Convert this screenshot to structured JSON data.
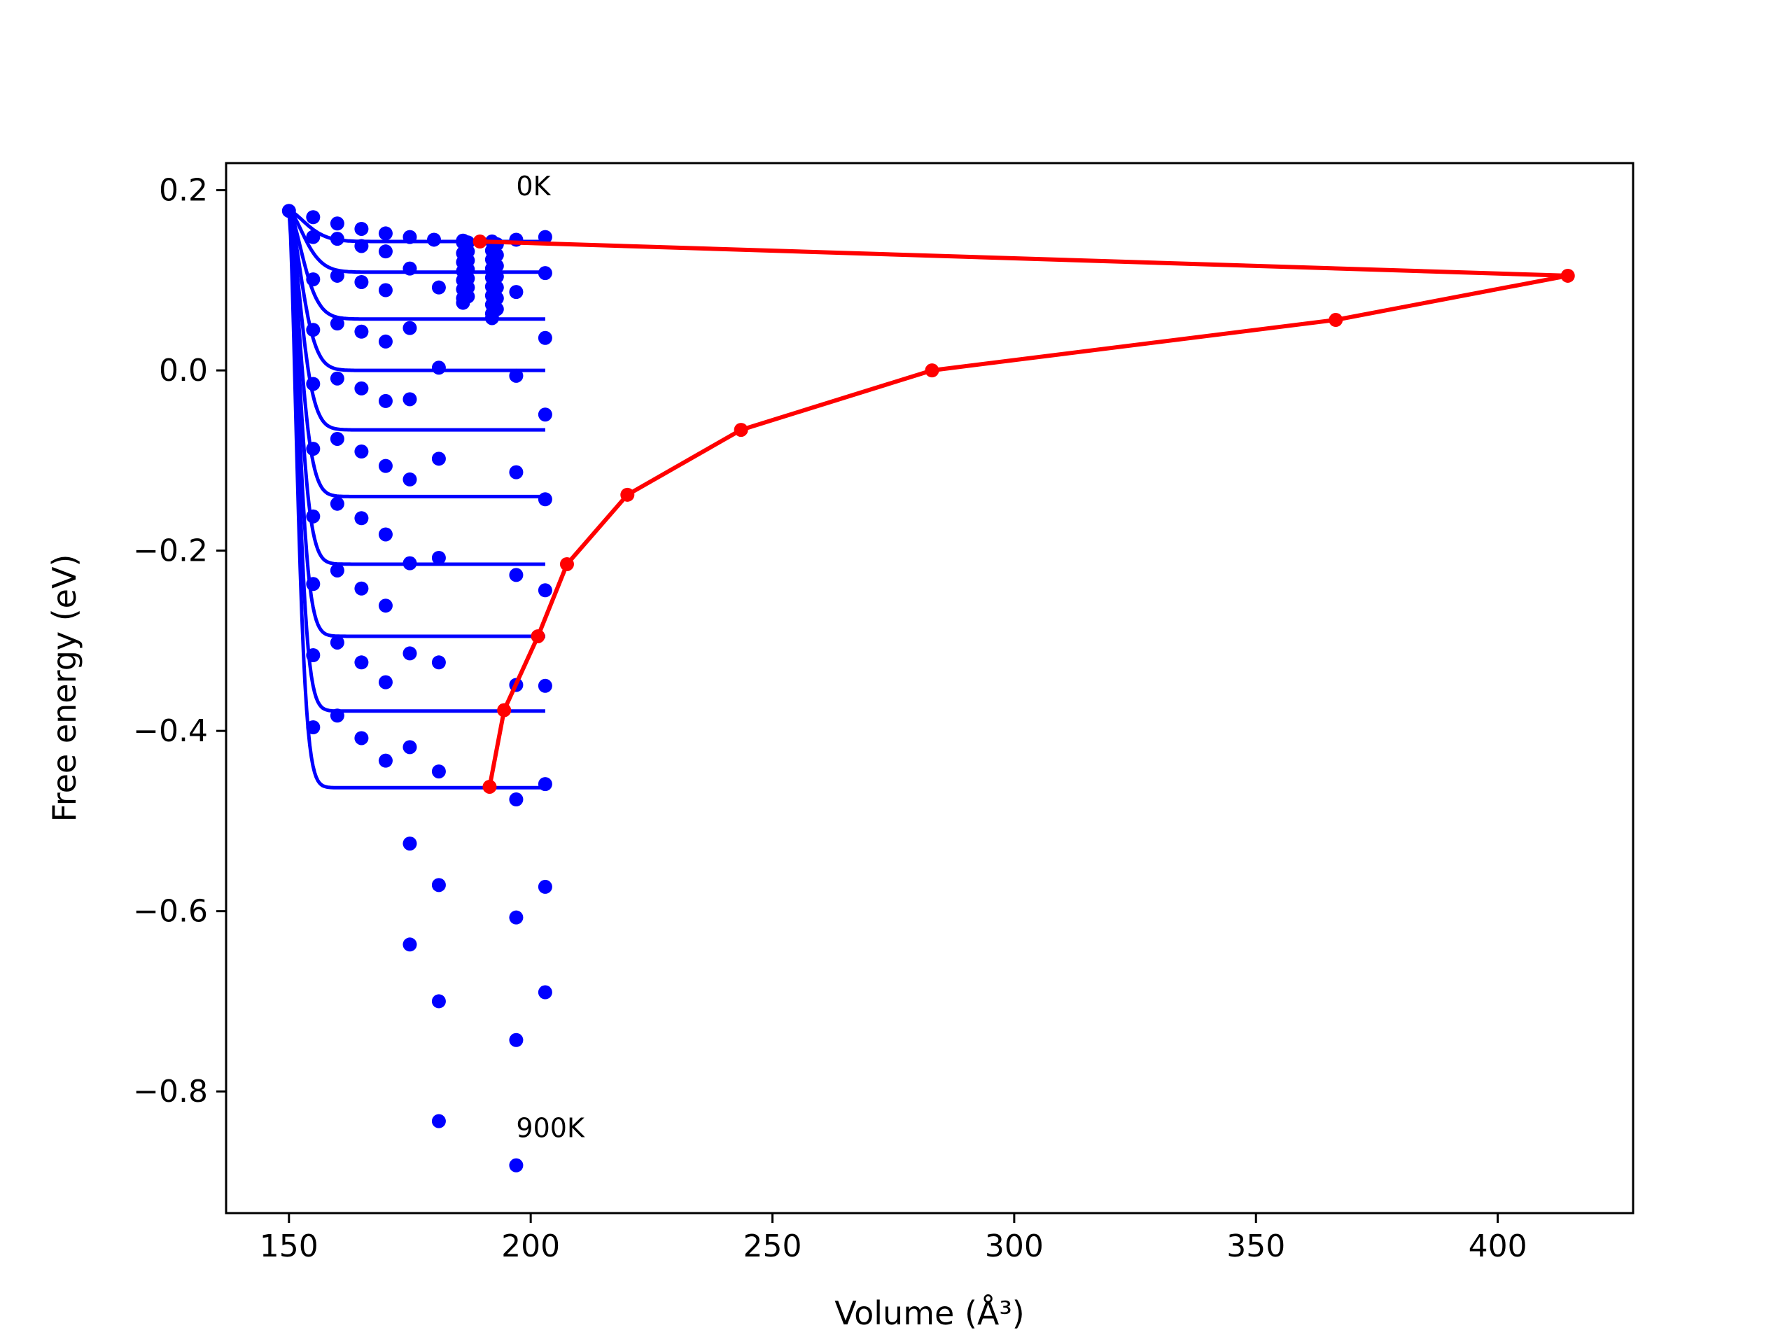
{
  "chart_data": {
    "type": "line",
    "title": "",
    "xlabel": "Volume (Å³)",
    "ylabel": "Free energy (eV)",
    "xlim": [
      137,
      428
    ],
    "ylim": [
      -0.935,
      0.23
    ],
    "xticks": [
      150,
      200,
      250,
      300,
      350,
      400
    ],
    "xtick_labels": [
      "150",
      "200",
      "250",
      "300",
      "350",
      "400"
    ],
    "yticks": [
      0.2,
      0.0,
      -0.2,
      -0.4,
      -0.6,
      -0.8
    ],
    "ytick_labels": [
      "0.2",
      "0.0",
      "−0.2",
      "−0.4",
      "−0.6",
      "−0.8"
    ],
    "grid": false,
    "legend": "none",
    "annotations": [
      {
        "text": "0K",
        "x": 197,
        "y": 0.205
      },
      {
        "text": "900K",
        "x": 197,
        "y": -0.84
      }
    ],
    "colors": {
      "fit": "#0000ff",
      "points": "#0000ff",
      "minima": "#ff0000"
    },
    "fit_curves": {
      "x_start": 150,
      "x_end": 203,
      "y_start": 0.177,
      "minima": [
        0.143,
        0.109,
        0.057,
        0.0,
        -0.066,
        -0.14,
        -0.215,
        -0.295,
        -0.378,
        -0.463
      ]
    },
    "scatter_points": [
      [
        150,
        0.177
      ],
      [
        155,
        0.17
      ],
      [
        160,
        0.163
      ],
      [
        165,
        0.157
      ],
      [
        170,
        0.152
      ],
      [
        175,
        0.148
      ],
      [
        180,
        0.145
      ],
      [
        186,
        0.144
      ],
      [
        197,
        0.145
      ],
      [
        203,
        0.148
      ],
      [
        155,
        0.148
      ],
      [
        160,
        0.146
      ],
      [
        165,
        0.138
      ],
      [
        170,
        0.132
      ],
      [
        175,
        0.113
      ],
      [
        181,
        0.092
      ],
      [
        197,
        0.087
      ],
      [
        203,
        0.108
      ],
      [
        160,
        0.105
      ],
      [
        165,
        0.098
      ],
      [
        170,
        0.089
      ],
      [
        155,
        0.101
      ],
      [
        155,
        0.045
      ],
      [
        160,
        0.052
      ],
      [
        165,
        0.043
      ],
      [
        170,
        0.032
      ],
      [
        175,
        0.047
      ],
      [
        181,
        0.003
      ],
      [
        197,
        -0.006
      ],
      [
        203,
        0.036
      ],
      [
        155,
        -0.015
      ],
      [
        160,
        -0.009
      ],
      [
        165,
        -0.02
      ],
      [
        170,
        -0.034
      ],
      [
        175,
        -0.032
      ],
      [
        203,
        -0.049
      ],
      [
        155,
        -0.087
      ],
      [
        160,
        -0.076
      ],
      [
        165,
        -0.09
      ],
      [
        170,
        -0.106
      ],
      [
        175,
        -0.121
      ],
      [
        181,
        -0.098
      ],
      [
        197,
        -0.113
      ],
      [
        203,
        -0.143
      ],
      [
        155,
        -0.162
      ],
      [
        160,
        -0.148
      ],
      [
        165,
        -0.164
      ],
      [
        170,
        -0.182
      ],
      [
        175,
        -0.214
      ],
      [
        181,
        -0.208
      ],
      [
        197,
        -0.227
      ],
      [
        203,
        -0.244
      ],
      [
        155,
        -0.237
      ],
      [
        160,
        -0.222
      ],
      [
        165,
        -0.242
      ],
      [
        170,
        -0.261
      ],
      [
        155,
        -0.316
      ],
      [
        160,
        -0.302
      ],
      [
        165,
        -0.324
      ],
      [
        170,
        -0.346
      ],
      [
        175,
        -0.314
      ],
      [
        181,
        -0.324
      ],
      [
        197,
        -0.349
      ],
      [
        203,
        -0.35
      ],
      [
        155,
        -0.396
      ],
      [
        160,
        -0.383
      ],
      [
        165,
        -0.408
      ],
      [
        170,
        -0.433
      ],
      [
        175,
        -0.418
      ],
      [
        181,
        -0.445
      ],
      [
        197,
        -0.476
      ],
      [
        203,
        -0.459
      ],
      [
        175,
        -0.525
      ],
      [
        181,
        -0.571
      ],
      [
        197,
        -0.607
      ],
      [
        203,
        -0.573
      ],
      [
        175,
        -0.637
      ],
      [
        181,
        -0.7
      ],
      [
        197,
        -0.743
      ],
      [
        203,
        -0.69
      ],
      [
        181,
        -0.833
      ],
      [
        197,
        -0.882
      ],
      [
        186,
        0.142
      ],
      [
        186,
        0.13
      ],
      [
        186,
        0.12
      ],
      [
        186,
        0.11
      ],
      [
        186,
        0.1
      ],
      [
        186,
        0.09
      ],
      [
        186,
        0.08
      ],
      [
        186,
        0.075
      ],
      [
        187,
        0.142
      ],
      [
        187,
        0.132
      ],
      [
        187,
        0.122
      ],
      [
        187,
        0.112
      ],
      [
        187,
        0.102
      ],
      [
        187,
        0.092
      ],
      [
        187,
        0.082
      ],
      [
        192,
        0.143
      ],
      [
        192,
        0.133
      ],
      [
        192,
        0.123
      ],
      [
        192,
        0.113
      ],
      [
        192,
        0.103
      ],
      [
        192,
        0.093
      ],
      [
        192,
        0.083
      ],
      [
        192,
        0.073
      ],
      [
        192,
        0.063
      ],
      [
        192,
        0.058
      ],
      [
        193,
        0.14
      ],
      [
        193,
        0.128
      ],
      [
        193,
        0.116
      ],
      [
        193,
        0.104
      ],
      [
        193,
        0.092
      ],
      [
        193,
        0.08
      ],
      [
        193,
        0.068
      ]
    ],
    "series": [
      {
        "x": [
          189.5,
          414.5,
          366.5,
          283,
          243.5,
          220,
          207.5,
          201.5,
          194.5,
          191.5
        ],
        "y": [
          0.143,
          0.105,
          0.056,
          0.0,
          -0.066,
          -0.138,
          -0.215,
          -0.295,
          -0.377,
          -0.462
        ]
      }
    ]
  }
}
